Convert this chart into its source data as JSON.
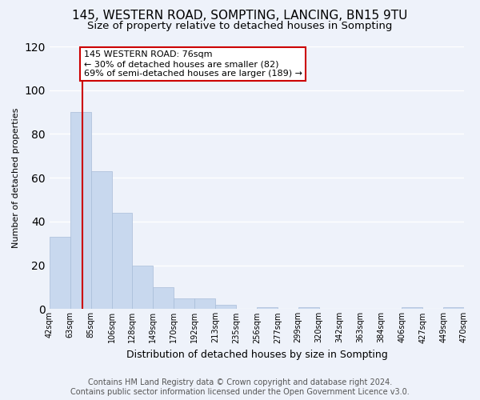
{
  "title1": "145, WESTERN ROAD, SOMPTING, LANCING, BN15 9TU",
  "title2": "Size of property relative to detached houses in Sompting",
  "xlabel": "Distribution of detached houses by size in Sompting",
  "ylabel": "Number of detached properties",
  "footer1": "Contains HM Land Registry data © Crown copyright and database right 2024.",
  "footer2": "Contains public sector information licensed under the Open Government Licence v3.0.",
  "annotation_line1": "145 WESTERN ROAD: 76sqm",
  "annotation_line2": "← 30% of detached houses are smaller (82)",
  "annotation_line3": "69% of semi-detached houses are larger (189) →",
  "bar_values": [
    33,
    90,
    63,
    44,
    20,
    10,
    5,
    5,
    2,
    0,
    1,
    0,
    1,
    0,
    0,
    0,
    0,
    1,
    0,
    1
  ],
  "categories": [
    "42sqm",
    "63sqm",
    "85sqm",
    "106sqm",
    "128sqm",
    "149sqm",
    "170sqm",
    "192sqm",
    "213sqm",
    "235sqm",
    "256sqm",
    "277sqm",
    "299sqm",
    "320sqm",
    "342sqm",
    "363sqm",
    "384sqm",
    "406sqm",
    "427sqm",
    "449sqm",
    "470sqm"
  ],
  "bar_color": "#c8d8ee",
  "bar_edge_color": "#a8bcd8",
  "vline_color": "#cc0000",
  "ylim": [
    0,
    120
  ],
  "yticks": [
    0,
    20,
    40,
    60,
    80,
    100,
    120
  ],
  "background_color": "#eef2fa",
  "annotation_box_color": "#ffffff",
  "annotation_box_edge": "#cc0000",
  "grid_color": "#ffffff",
  "title1_fontsize": 11,
  "title2_fontsize": 9.5,
  "footer_fontsize": 7,
  "annotation_fontsize": 8,
  "axis_label_fontsize": 8,
  "tick_fontsize": 7,
  "xlabel_fontsize": 9
}
